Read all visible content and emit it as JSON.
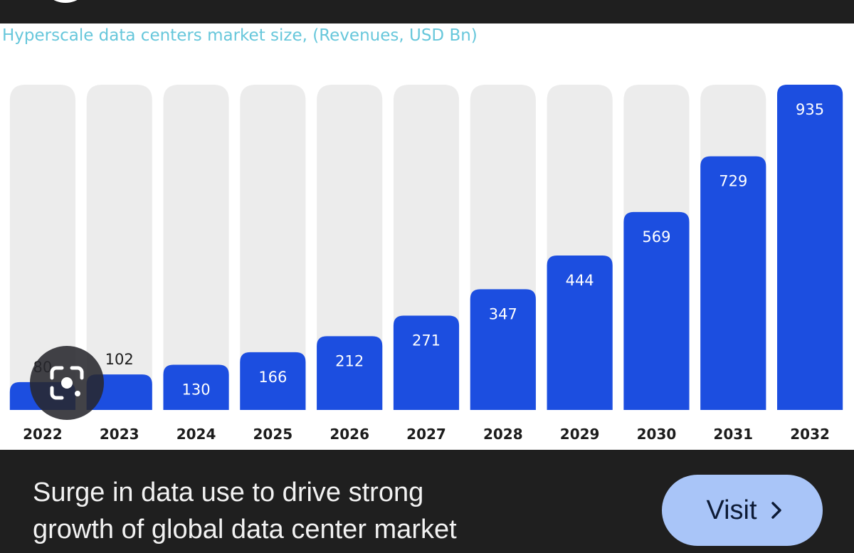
{
  "chart_data": {
    "type": "bar",
    "title": "Hyperscale data centers market size, (Revenues, USD Bn)",
    "categories": [
      "2022",
      "2023",
      "2024",
      "2025",
      "2026",
      "2027",
      "2028",
      "2029",
      "2030",
      "2031",
      "2032"
    ],
    "values": [
      80,
      102,
      130,
      166,
      212,
      271,
      347,
      444,
      569,
      729,
      935
    ],
    "xlabel": "",
    "ylabel": "",
    "ylim": [
      0,
      935
    ],
    "grid": false,
    "legend": "none"
  },
  "colors": {
    "bar": "#1c4ee0",
    "track": "#ececec",
    "title": "#67c7db",
    "label_inside": "#ffffff",
    "label_outside": "#1c1c1c"
  },
  "caption": {
    "line1": "Surge in data use to drive strong",
    "line2": "growth of global data center market"
  },
  "visit": {
    "label": "Visit",
    "icon": "chevron-right-icon"
  },
  "lens": {
    "icon": "google-lens-icon"
  }
}
